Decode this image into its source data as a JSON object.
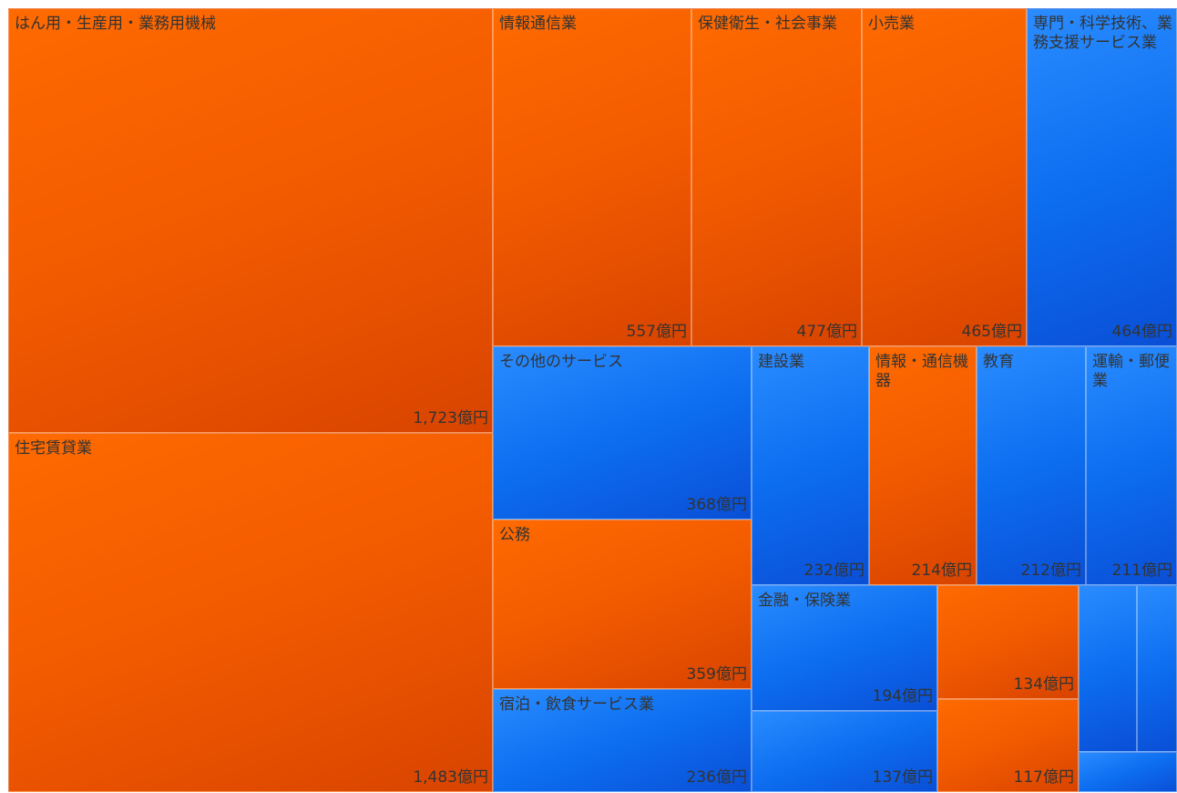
{
  "chart_data": {
    "type": "treemap",
    "unit": "億円",
    "colors": {
      "orange": "#f25a00",
      "blue": "#0d6ef0"
    },
    "items": [
      {
        "label": "はん用・生産用・業務用機械",
        "value": 1723,
        "display": "1,723億円",
        "color": "orange"
      },
      {
        "label": "住宅賃貸業",
        "value": 1483,
        "display": "1,483億円",
        "color": "orange"
      },
      {
        "label": "情報通信業",
        "value": 557,
        "display": "557億円",
        "color": "orange"
      },
      {
        "label": "保健衛生・社会事業",
        "value": 477,
        "display": "477億円",
        "color": "orange"
      },
      {
        "label": "小売業",
        "value": 465,
        "display": "465億円",
        "color": "orange"
      },
      {
        "label": "専門・科学技術、業務支援サービス業",
        "value": 464,
        "display": "464億円",
        "color": "blue"
      },
      {
        "label": "その他のサービス",
        "value": 368,
        "display": "368億円",
        "color": "blue"
      },
      {
        "label": "公務",
        "value": 359,
        "display": "359億円",
        "color": "orange"
      },
      {
        "label": "宿泊・飲食サービス業",
        "value": 236,
        "display": "236億円",
        "color": "blue"
      },
      {
        "label": "建設業",
        "value": 232,
        "display": "232億円",
        "color": "blue"
      },
      {
        "label": "情報・通信機器",
        "value": 214,
        "display": "214億円",
        "color": "orange"
      },
      {
        "label": "教育",
        "value": 212,
        "display": "212億円",
        "color": "blue"
      },
      {
        "label": "運輸・郵便業",
        "value": 211,
        "display": "211億円",
        "color": "blue"
      },
      {
        "label": "金融・保険業",
        "value": 194,
        "display": "194億円",
        "color": "blue"
      },
      {
        "label": "",
        "value": 137,
        "display": "137億円",
        "color": "blue"
      },
      {
        "label": "",
        "value": 134,
        "display": "134億円",
        "color": "orange"
      },
      {
        "label": "",
        "value": 117,
        "display": "117億円",
        "color": "orange"
      },
      {
        "label": "",
        "value": null,
        "display": "",
        "color": "blue"
      },
      {
        "label": "",
        "value": null,
        "display": "",
        "color": "blue"
      },
      {
        "label": "",
        "value": null,
        "display": "",
        "color": "blue"
      }
    ]
  }
}
